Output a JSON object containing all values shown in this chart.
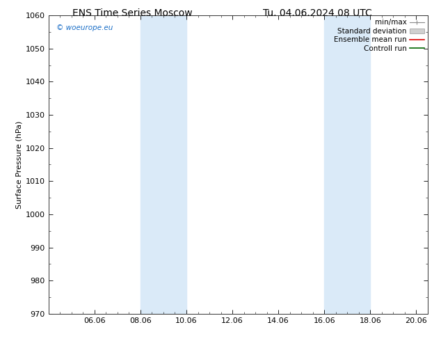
{
  "title_left": "ENS Time Series Moscow",
  "title_right": "Tu. 04.06.2024 08 UTC",
  "ylabel": "Surface Pressure (hPa)",
  "ylim": [
    970,
    1060
  ],
  "yticks": [
    970,
    980,
    990,
    1000,
    1010,
    1020,
    1030,
    1040,
    1050,
    1060
  ],
  "xlim": [
    0,
    16.5
  ],
  "xtick_positions": [
    2,
    4,
    6,
    8,
    10,
    12,
    14,
    16
  ],
  "xtick_labels": [
    "06.06",
    "08.06",
    "10.06",
    "12.06",
    "14.06",
    "16.06",
    "18.06",
    "20.06"
  ],
  "shaded_regions": [
    {
      "xmin": 4,
      "xmax": 6,
      "color": "#daeaf8"
    },
    {
      "xmin": 12,
      "xmax": 14,
      "color": "#daeaf8"
    }
  ],
  "watermark_text": "© woeurope.eu",
  "watermark_color": "#1a6ec7",
  "bg_color": "#ffffff",
  "font_size": 8,
  "title_font_size": 10,
  "legend_font_size": 7.5
}
